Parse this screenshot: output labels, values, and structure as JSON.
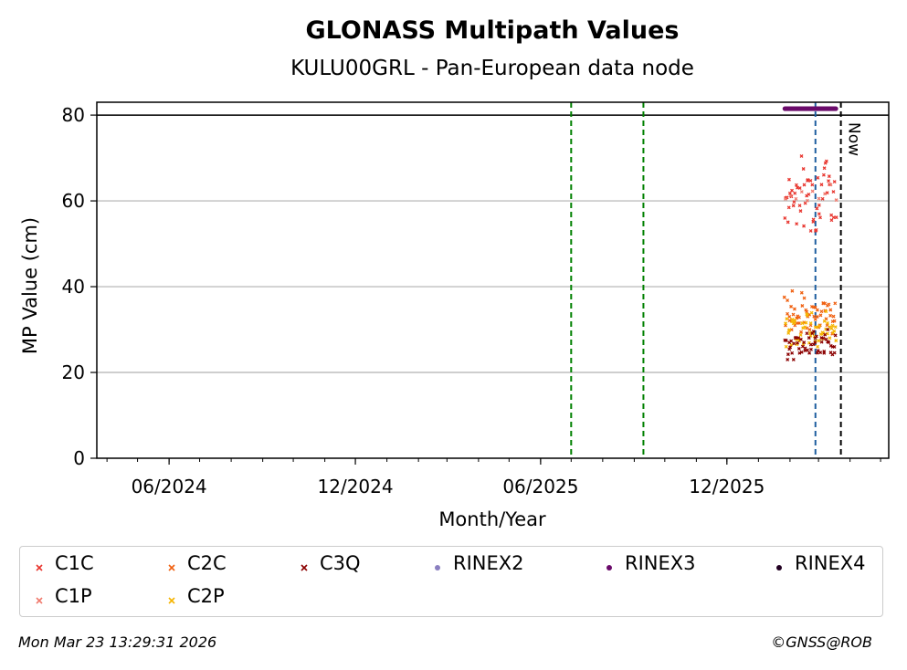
{
  "chart_data": {
    "type": "scatter",
    "title": "GLONASS Multipath Values",
    "subtitle": "KULU00GRL - Pan-European data node",
    "xlabel": "Month/Year",
    "ylabel": "MP Value (cm)",
    "xlim": [
      "2024-03-22",
      "2026-05-09"
    ],
    "ylim": [
      0,
      83
    ],
    "yticks": [
      0,
      20,
      40,
      60,
      80
    ],
    "xticks": [
      {
        "date": "2024-06-01",
        "label": "06/2024"
      },
      {
        "date": "2024-12-01",
        "label": "12/2024"
      },
      {
        "date": "2025-06-01",
        "label": "06/2025"
      },
      {
        "date": "2025-12-01",
        "label": "12/2025"
      }
    ],
    "grid": "horizontal",
    "reference_line_y": 80,
    "vertical_lines": [
      {
        "date": "2025-07-01",
        "color": "#008000",
        "style": "dashed"
      },
      {
        "date": "2025-09-10",
        "color": "#008000",
        "style": "dashed"
      },
      {
        "date": "2026-02-26",
        "color": "#1f5fa0",
        "style": "dashed"
      },
      {
        "date": "2026-03-23",
        "color": "#000000",
        "style": "dashed",
        "label": "Now"
      }
    ],
    "series": [
      {
        "name": "C1C",
        "color": "#e8352e",
        "marker": "x",
        "x_range": [
          "2026-01-27",
          "2026-03-18"
        ],
        "values_range": [
          53,
          72
        ],
        "center": 61
      },
      {
        "name": "C1P",
        "color": "#f07a6e",
        "marker": "x",
        "x_range": [
          "2026-01-27",
          "2026-03-18"
        ],
        "values_range": [
          60,
          65
        ],
        "center": 62
      },
      {
        "name": "C2C",
        "color": "#f06010",
        "marker": "x",
        "x_range": [
          "2026-01-27",
          "2026-03-18"
        ],
        "values_range": [
          29,
          39
        ],
        "center": 34
      },
      {
        "name": "C2P",
        "color": "#f5b400",
        "marker": "x",
        "x_range": [
          "2026-01-27",
          "2026-03-18"
        ],
        "values_range": [
          26,
          35
        ],
        "center": 30
      },
      {
        "name": "C3Q",
        "color": "#8b0000",
        "marker": "x",
        "x_range": [
          "2026-01-27",
          "2026-03-18"
        ],
        "values_range": [
          23,
          30
        ],
        "center": 26.5
      },
      {
        "name": "RINEX2",
        "color": "#8a7fc0",
        "marker": "o",
        "x_range": [],
        "value": null
      },
      {
        "name": "RINEX3",
        "color": "#6a0a6a",
        "marker": "o",
        "x_range": [
          "2026-01-27",
          "2026-03-18"
        ],
        "value": 81.5
      },
      {
        "name": "RINEX4",
        "color": "#220022",
        "marker": "o",
        "x_range": [],
        "value": null
      }
    ]
  },
  "footer": {
    "timestamp": "Mon Mar 23 13:29:31 2026",
    "credit": "©GNSS@ROB"
  }
}
